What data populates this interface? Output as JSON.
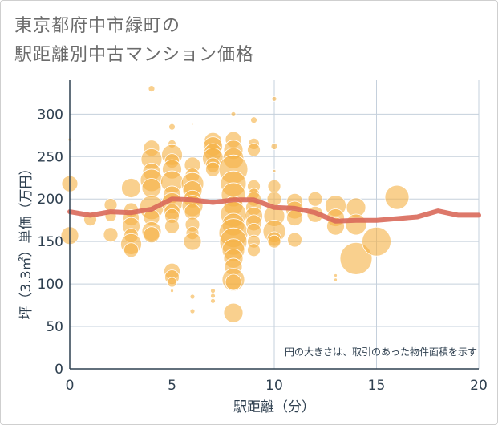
{
  "title_line1": "東京都府中市緑町の",
  "title_line2": "駅距離別中古マンション価格",
  "chart_data": {
    "type": "scatter",
    "title": "東京都府中市緑町の駅距離別中古マンション価格",
    "xlabel": "駅距離（分）",
    "ylabel": "坪（3.3㎡）単価（万円）",
    "note": "円の大きさは、取引のあった物件面積を示す",
    "xlim": [
      0,
      20
    ],
    "ylim": [
      0,
      340
    ],
    "xticks": [
      "0",
      "5",
      "10",
      "15",
      "20"
    ],
    "yticks": [
      "0",
      "50",
      "100",
      "150",
      "200",
      "250",
      "300"
    ],
    "grid": true,
    "colors": {
      "bubble": "#f5b042",
      "trend": "#d9695a",
      "grid": "#c5d0dc",
      "axis": "#2f4050"
    },
    "series": [
      {
        "kind": "bubble",
        "points": [
          {
            "x": 0,
            "y": 218,
            "s": 10
          },
          {
            "x": 0,
            "y": 157,
            "s": 11
          },
          {
            "x": 0,
            "y": 270,
            "s": 2
          },
          {
            "x": 1,
            "y": 176,
            "s": 8
          },
          {
            "x": 2,
            "y": 193,
            "s": 8
          },
          {
            "x": 2,
            "y": 180,
            "s": 7
          },
          {
            "x": 2,
            "y": 158,
            "s": 9
          },
          {
            "x": 3,
            "y": 213,
            "s": 12
          },
          {
            "x": 3,
            "y": 187,
            "s": 9
          },
          {
            "x": 3,
            "y": 178,
            "s": 10
          },
          {
            "x": 3,
            "y": 168,
            "s": 11
          },
          {
            "x": 3,
            "y": 157,
            "s": 9
          },
          {
            "x": 3,
            "y": 147,
            "s": 13
          },
          {
            "x": 3,
            "y": 140,
            "s": 9
          },
          {
            "x": 4,
            "y": 330,
            "s": 4
          },
          {
            "x": 4,
            "y": 260,
            "s": 10
          },
          {
            "x": 4,
            "y": 247,
            "s": 13
          },
          {
            "x": 4,
            "y": 232,
            "s": 11
          },
          {
            "x": 4,
            "y": 222,
            "s": 14
          },
          {
            "x": 4,
            "y": 213,
            "s": 12
          },
          {
            "x": 4,
            "y": 190,
            "s": 15
          },
          {
            "x": 4,
            "y": 178,
            "s": 10
          },
          {
            "x": 4,
            "y": 162,
            "s": 12
          },
          {
            "x": 4,
            "y": 158,
            "s": 10
          },
          {
            "x": 5,
            "y": 320,
            "s": 1
          },
          {
            "x": 5,
            "y": 285,
            "s": 4
          },
          {
            "x": 5,
            "y": 265,
            "s": 5
          },
          {
            "x": 5,
            "y": 252,
            "s": 13
          },
          {
            "x": 5,
            "y": 245,
            "s": 9
          },
          {
            "x": 5,
            "y": 235,
            "s": 12
          },
          {
            "x": 5,
            "y": 220,
            "s": 14
          },
          {
            "x": 5,
            "y": 205,
            "s": 11
          },
          {
            "x": 5,
            "y": 195,
            "s": 13
          },
          {
            "x": 5,
            "y": 185,
            "s": 10
          },
          {
            "x": 5,
            "y": 180,
            "s": 9
          },
          {
            "x": 5,
            "y": 168,
            "s": 9
          },
          {
            "x": 5,
            "y": 115,
            "s": 10
          },
          {
            "x": 5,
            "y": 108,
            "s": 9
          },
          {
            "x": 5,
            "y": 102,
            "s": 6
          },
          {
            "x": 5,
            "y": 92,
            "s": 2
          },
          {
            "x": 6,
            "y": 288,
            "s": 1
          },
          {
            "x": 6,
            "y": 240,
            "s": 10
          },
          {
            "x": 6,
            "y": 228,
            "s": 9
          },
          {
            "x": 6,
            "y": 218,
            "s": 14
          },
          {
            "x": 6,
            "y": 210,
            "s": 12
          },
          {
            "x": 6,
            "y": 200,
            "s": 11
          },
          {
            "x": 6,
            "y": 192,
            "s": 13
          },
          {
            "x": 6,
            "y": 185,
            "s": 10
          },
          {
            "x": 6,
            "y": 170,
            "s": 9
          },
          {
            "x": 6,
            "y": 160,
            "s": 8
          },
          {
            "x": 6,
            "y": 150,
            "s": 11
          },
          {
            "x": 6,
            "y": 85,
            "s": 3
          },
          {
            "x": 6,
            "y": 68,
            "s": 3
          },
          {
            "x": 7,
            "y": 268,
            "s": 11
          },
          {
            "x": 7,
            "y": 262,
            "s": 12
          },
          {
            "x": 7,
            "y": 255,
            "s": 11
          },
          {
            "x": 7,
            "y": 248,
            "s": 13
          },
          {
            "x": 7,
            "y": 240,
            "s": 9
          },
          {
            "x": 7,
            "y": 235,
            "s": 9
          },
          {
            "x": 7,
            "y": 92,
            "s": 3
          },
          {
            "x": 7,
            "y": 86,
            "s": 3
          },
          {
            "x": 7,
            "y": 80,
            "s": 3
          },
          {
            "x": 8,
            "y": 300,
            "s": 3
          },
          {
            "x": 8,
            "y": 270,
            "s": 10
          },
          {
            "x": 8,
            "y": 258,
            "s": 12
          },
          {
            "x": 8,
            "y": 248,
            "s": 13
          },
          {
            "x": 8,
            "y": 235,
            "s": 18
          },
          {
            "x": 8,
            "y": 218,
            "s": 16
          },
          {
            "x": 8,
            "y": 205,
            "s": 15
          },
          {
            "x": 8,
            "y": 192,
            "s": 12
          },
          {
            "x": 8,
            "y": 182,
            "s": 16
          },
          {
            "x": 8,
            "y": 170,
            "s": 14
          },
          {
            "x": 8,
            "y": 160,
            "s": 18
          },
          {
            "x": 8,
            "y": 150,
            "s": 17
          },
          {
            "x": 8,
            "y": 140,
            "s": 14
          },
          {
            "x": 8,
            "y": 130,
            "s": 12
          },
          {
            "x": 8,
            "y": 120,
            "s": 11
          },
          {
            "x": 8,
            "y": 105,
            "s": 14
          },
          {
            "x": 8,
            "y": 102,
            "s": 10
          },
          {
            "x": 8,
            "y": 66,
            "s": 12
          },
          {
            "x": 9,
            "y": 293,
            "s": 4
          },
          {
            "x": 9,
            "y": 265,
            "s": 7
          },
          {
            "x": 9,
            "y": 258,
            "s": 8
          },
          {
            "x": 9,
            "y": 215,
            "s": 8
          },
          {
            "x": 9,
            "y": 206,
            "s": 7
          },
          {
            "x": 9,
            "y": 200,
            "s": 9
          },
          {
            "x": 9,
            "y": 190,
            "s": 10
          },
          {
            "x": 9,
            "y": 180,
            "s": 11
          },
          {
            "x": 9,
            "y": 172,
            "s": 10
          },
          {
            "x": 9,
            "y": 163,
            "s": 9
          },
          {
            "x": 9,
            "y": 150,
            "s": 8
          },
          {
            "x": 9,
            "y": 140,
            "s": 8
          },
          {
            "x": 10,
            "y": 318,
            "s": 3
          },
          {
            "x": 10,
            "y": 262,
            "s": 4
          },
          {
            "x": 10,
            "y": 233,
            "s": 2
          },
          {
            "x": 10,
            "y": 215,
            "s": 8
          },
          {
            "x": 10,
            "y": 200,
            "s": 9
          },
          {
            "x": 10,
            "y": 180,
            "s": 13
          },
          {
            "x": 10,
            "y": 162,
            "s": 14
          },
          {
            "x": 10,
            "y": 153,
            "s": 9
          },
          {
            "x": 10,
            "y": 150,
            "s": 8
          },
          {
            "x": 11,
            "y": 197,
            "s": 10
          },
          {
            "x": 11,
            "y": 187,
            "s": 11
          },
          {
            "x": 11,
            "y": 178,
            "s": 10
          },
          {
            "x": 11,
            "y": 152,
            "s": 9
          },
          {
            "x": 12,
            "y": 200,
            "s": 9
          },
          {
            "x": 12,
            "y": 182,
            "s": 10
          },
          {
            "x": 13,
            "y": 192,
            "s": 13
          },
          {
            "x": 13,
            "y": 178,
            "s": 11
          },
          {
            "x": 13,
            "y": 168,
            "s": 11
          },
          {
            "x": 13,
            "y": 110,
            "s": 2
          },
          {
            "x": 13,
            "y": 105,
            "s": 2
          },
          {
            "x": 14,
            "y": 190,
            "s": 12
          },
          {
            "x": 14,
            "y": 170,
            "s": 13
          },
          {
            "x": 14,
            "y": 130,
            "s": 20
          },
          {
            "x": 15,
            "y": 150,
            "s": 18
          },
          {
            "x": 16,
            "y": 202,
            "s": 15
          }
        ]
      },
      {
        "kind": "line",
        "points": [
          {
            "x": 0,
            "y": 185
          },
          {
            "x": 1,
            "y": 181
          },
          {
            "x": 2,
            "y": 185
          },
          {
            "x": 3,
            "y": 184
          },
          {
            "x": 4,
            "y": 188
          },
          {
            "x": 5,
            "y": 200
          },
          {
            "x": 6,
            "y": 199
          },
          {
            "x": 7,
            "y": 196
          },
          {
            "x": 8,
            "y": 199
          },
          {
            "x": 9,
            "y": 199
          },
          {
            "x": 10,
            "y": 190
          },
          {
            "x": 11,
            "y": 189
          },
          {
            "x": 12,
            "y": 184
          },
          {
            "x": 13,
            "y": 174
          },
          {
            "x": 14,
            "y": 175
          },
          {
            "x": 15,
            "y": 175
          },
          {
            "x": 16,
            "y": 177
          },
          {
            "x": 17,
            "y": 179
          },
          {
            "x": 18,
            "y": 186
          },
          {
            "x": 19,
            "y": 181
          },
          {
            "x": 20,
            "y": 181
          }
        ]
      }
    ]
  }
}
